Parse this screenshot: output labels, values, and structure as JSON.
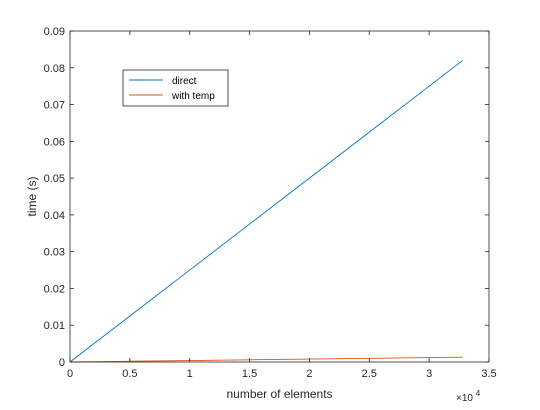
{
  "chart_data": {
    "type": "line",
    "title": "",
    "xlabel": "number of elements",
    "ylabel": "time (s)",
    "x_exponent_label": {
      "base": "×10",
      "exponent": "4"
    },
    "xlim": [
      0,
      3.5
    ],
    "ylim": [
      0,
      0.09
    ],
    "x_ticks": [
      0,
      0.5,
      1,
      1.5,
      2,
      2.5,
      3,
      3.5
    ],
    "x_tick_labels": [
      "0",
      "0.5",
      "1",
      "1.5",
      "2",
      "2.5",
      "3",
      "3.5"
    ],
    "y_ticks": [
      0,
      0.01,
      0.02,
      0.03,
      0.04,
      0.05,
      0.06,
      0.07,
      0.08,
      0.09
    ],
    "y_tick_labels": [
      "0",
      "0.01",
      "0.02",
      "0.03",
      "0.04",
      "0.05",
      "0.06",
      "0.07",
      "0.08",
      "0.09"
    ],
    "grid": false,
    "box": true,
    "legend_position": "top-left",
    "series": [
      {
        "name": "direct",
        "color": "#0072bd",
        "x": [
          0,
          0.5,
          1,
          1.5,
          2,
          2.5,
          3,
          3.28
        ],
        "y": [
          0,
          0.0125,
          0.025,
          0.0375,
          0.05,
          0.0625,
          0.075,
          0.082
        ]
      },
      {
        "name": "with temp",
        "color": "#d95319",
        "x": [
          0,
          0.5,
          1,
          1.5,
          2,
          2.5,
          3,
          3.28
        ],
        "y": [
          0,
          0.0002,
          0.0004,
          0.0006,
          0.0008,
          0.001,
          0.0012,
          0.0013
        ]
      }
    ]
  }
}
